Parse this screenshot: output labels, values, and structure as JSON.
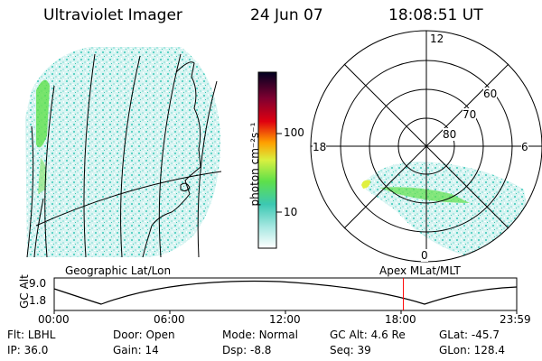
{
  "header": {
    "instrument": "Ultraviolet Imager",
    "date": "24 Jun 07",
    "time": "18:08:51 UT"
  },
  "colorbar": {
    "unit_label": "photon cm⁻²s⁻¹",
    "tick_labels": [
      "100",
      "10"
    ]
  },
  "polar_plot": {
    "mlt_labels": {
      "top": "12",
      "left": "18",
      "right": "6",
      "bottom": "0"
    },
    "lat_labels": [
      "60",
      "70",
      "80"
    ]
  },
  "panel_labels": {
    "left": "Geographic Lat/Lon",
    "right": "Apex MLat/MLT"
  },
  "orbit_plot": {
    "ylabel": "GC Alt",
    "y_ticks": [
      "9.0",
      "1.8"
    ],
    "x_ticks": [
      "00:00",
      "06:00",
      "12:00",
      "18:00",
      "23:59"
    ],
    "current_time_fraction": 0.755,
    "marker_color": "#ff0000"
  },
  "status": {
    "row1": [
      {
        "label": "Flt:",
        "value": "LBHL"
      },
      {
        "label": "Door:",
        "value": "Open"
      },
      {
        "label": "Mode:",
        "value": "Normal"
      },
      {
        "label": "GC Alt:",
        "value": "4.6 Re"
      },
      {
        "label": "GLat:",
        "value": "-45.7"
      }
    ],
    "row2": [
      {
        "label": "IP:",
        "value": "36.0"
      },
      {
        "label": "Gain:",
        "value": "14"
      },
      {
        "label": "Dsp:",
        "value": "-8.8"
      },
      {
        "label": "Seq:",
        "value": "39"
      },
      {
        "label": "GLon:",
        "value": "128.4"
      }
    ]
  }
}
